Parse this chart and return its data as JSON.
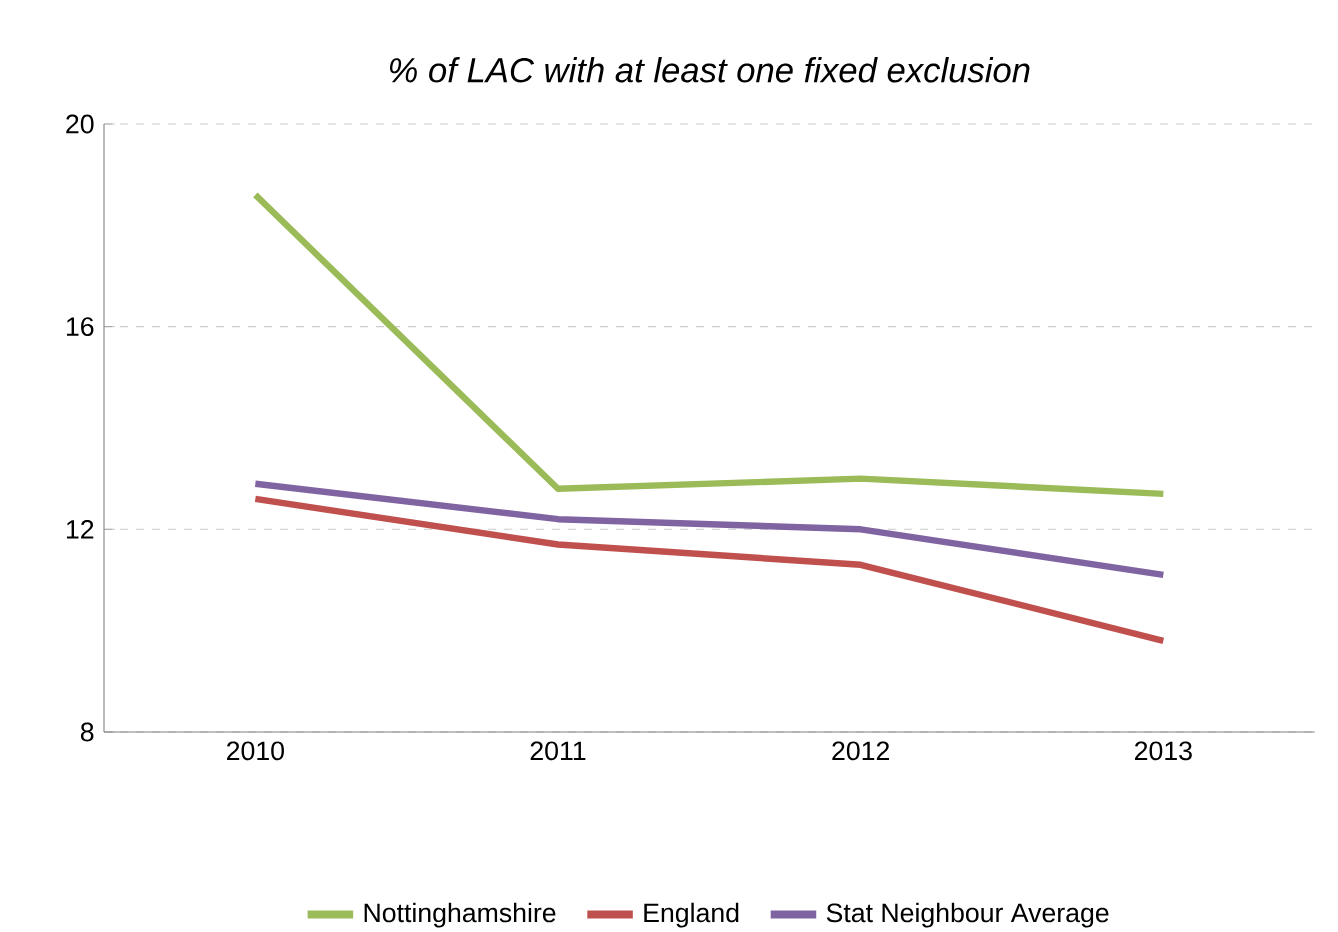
{
  "chart_data": {
    "type": "line",
    "title": "% of LAC with at least one fixed exclusion",
    "categories": [
      "2010",
      "2011",
      "2012",
      "2013"
    ],
    "series": [
      {
        "name": "Nottinghamshire",
        "color": "#9bbb59",
        "values": [
          18.6,
          12.8,
          13.0,
          12.7
        ]
      },
      {
        "name": "England",
        "color": "#c0504d",
        "values": [
          12.6,
          11.7,
          11.3,
          9.8
        ]
      },
      {
        "name": "Stat Neighbour Average",
        "color": "#8064a2",
        "values": [
          12.9,
          12.2,
          12.0,
          11.1
        ]
      }
    ],
    "ylim": [
      8,
      20
    ],
    "yticks": [
      8,
      12,
      16,
      20
    ],
    "grid": "y",
    "legend": "bottom"
  }
}
